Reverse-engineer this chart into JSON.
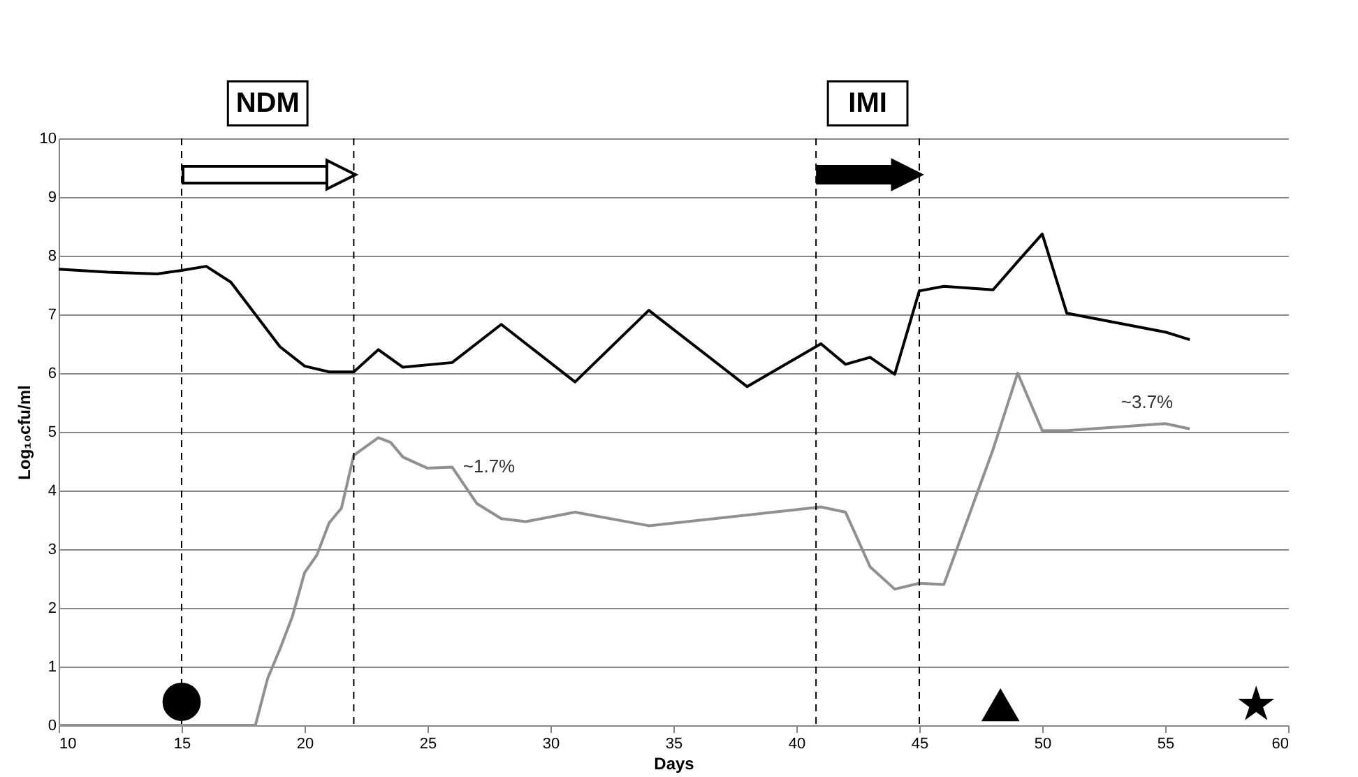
{
  "chart_data": {
    "type": "line",
    "xlabel": "Days",
    "ylabel": "Log₁₀cfu/ml",
    "xlim": [
      10,
      60
    ],
    "xticks": [
      10,
      15,
      20,
      25,
      30,
      35,
      40,
      45,
      50,
      55,
      60
    ],
    "ylim": [
      0,
      10
    ],
    "yticks": [
      0,
      1,
      2,
      3,
      4,
      5,
      6,
      7,
      8,
      9,
      10
    ],
    "grid": "y",
    "legend": false,
    "marker": "none",
    "line_style": "solid",
    "series": [
      {
        "color": "#000000",
        "x": [
          10,
          12,
          14,
          15,
          16,
          17,
          18,
          19,
          20,
          21,
          22,
          23,
          24,
          26,
          28,
          31,
          34,
          38,
          41,
          42,
          43,
          44,
          45,
          46,
          48,
          49,
          50,
          51,
          55,
          56
        ],
        "values": [
          7.77,
          7.72,
          7.69,
          7.75,
          7.82,
          7.55,
          7.0,
          6.45,
          6.12,
          6.02,
          6.02,
          6.4,
          6.1,
          6.18,
          6.83,
          5.85,
          7.07,
          5.77,
          6.5,
          6.15,
          6.27,
          5.98,
          7.4,
          7.48,
          7.42,
          7.9,
          8.37,
          7.02,
          6.7,
          6.57
        ]
      },
      {
        "type": "scatter",
        "marker": "circle",
        "color": "#000000",
        "x": [
          15
        ],
        "values": [
          0.4
        ]
      },
      {
        "type": "scatter",
        "marker": "triangle",
        "color": "#000000",
        "x": [
          48.3
        ],
        "values": [
          0.35
        ]
      },
      {
        "type": "scatter",
        "marker": "star",
        "color": "#000000",
        "x": [
          58.7
        ],
        "values": [
          0.35
        ]
      },
      {
        "color": "#909090",
        "x": [
          10,
          18,
          18.5,
          19,
          19.5,
          20,
          20.5,
          21,
          21.5,
          22,
          23,
          23.5,
          24,
          25,
          26,
          27,
          28,
          29,
          31,
          34,
          41,
          42,
          43,
          44,
          45,
          46,
          48,
          49,
          50,
          51,
          55,
          56
        ],
        "values": [
          0,
          0,
          0.8,
          1.3,
          1.85,
          2.6,
          2.9,
          3.45,
          3.7,
          4.6,
          4.9,
          4.82,
          4.57,
          4.38,
          4.4,
          3.78,
          3.52,
          3.47,
          3.63,
          3.4,
          3.72,
          3.63,
          2.7,
          2.32,
          2.42,
          2.4,
          4.7,
          6.0,
          5.02,
          5.02,
          5.14,
          5.05
        ]
      }
    ],
    "ref_lines": [
      {
        "axis": "x",
        "value": 15,
        "color": "#000000",
        "line_style": "dashed"
      },
      {
        "axis": "x",
        "value": 22,
        "color": "#000000",
        "line_style": "dashed"
      },
      {
        "axis": "x",
        "value": 40.8,
        "color": "#000000",
        "line_style": "dashed"
      },
      {
        "axis": "x",
        "value": 45,
        "color": "#000000",
        "line_style": "dashed"
      }
    ],
    "annotations": [
      "NDM",
      "IMI",
      "~1.7%",
      "~3.7%"
    ]
  }
}
